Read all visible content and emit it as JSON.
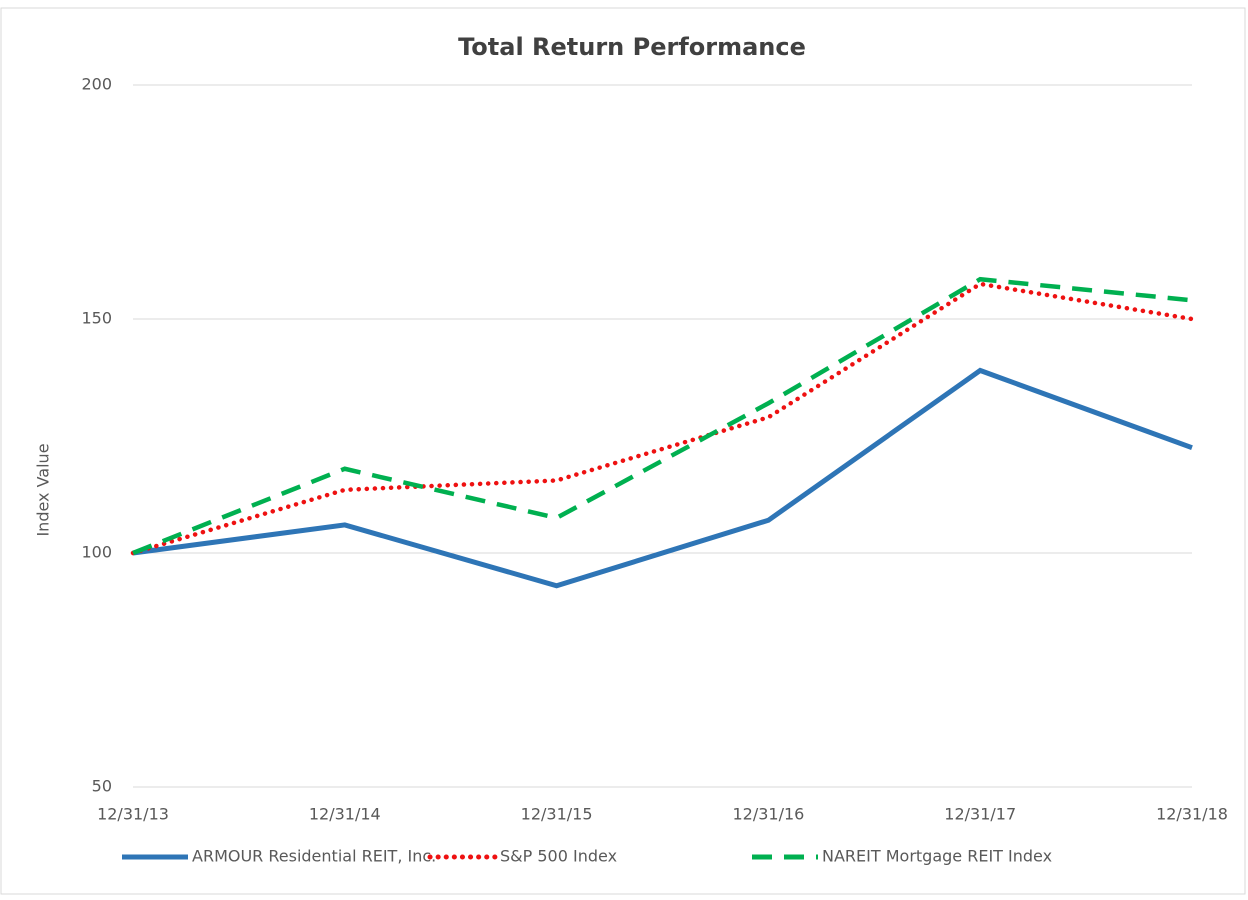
{
  "chart_data": {
    "type": "line",
    "title": "Total Return Performance",
    "y_label": "Index Value",
    "categories": [
      "12/31/13",
      "12/31/14",
      "12/31/15",
      "12/31/16",
      "12/31/17",
      "12/31/18"
    ],
    "series": [
      {
        "name": "ARMOUR Residential REIT, Inc.",
        "color": "#2e75b6",
        "dash": "solid",
        "values": [
          100,
          106,
          93,
          107,
          139,
          122.5
        ]
      },
      {
        "name": "S&P 500 Index",
        "color": "#ee1111",
        "dash": "dotted",
        "values": [
          100,
          113.5,
          115.5,
          129,
          157.5,
          150
        ]
      },
      {
        "name": "NAREIT Mortgage REIT Index",
        "color": "#00b050",
        "dash": "dashed",
        "values": [
          100,
          118,
          107.5,
          132,
          158.5,
          154
        ]
      }
    ],
    "ylim": [
      50,
      200
    ],
    "yticks": [
      50,
      100,
      150,
      200
    ],
    "grid": true,
    "legend": "bottom"
  }
}
